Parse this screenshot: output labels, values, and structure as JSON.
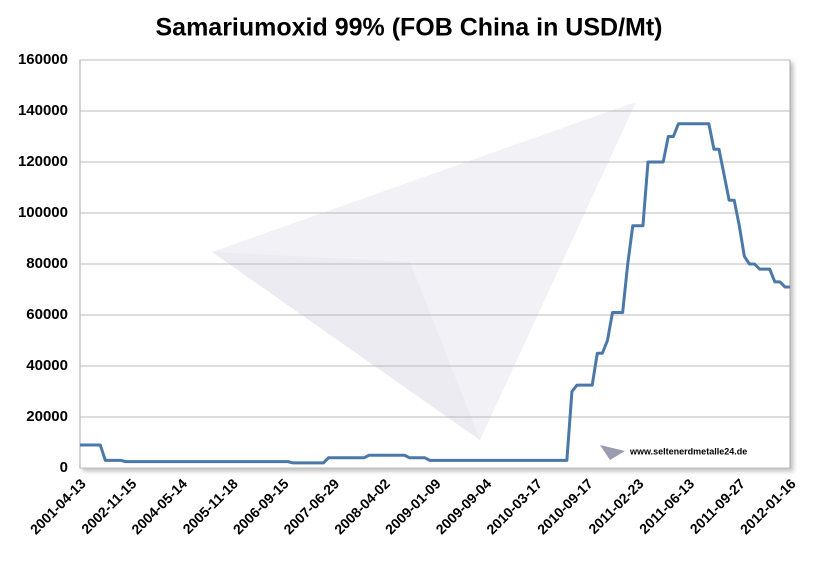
{
  "chart_data": {
    "type": "line",
    "title": "Samariumoxid 99% (FOB China in USD/Mt)",
    "annotation": "www.seltenerdmetalle24.de",
    "categories": [
      "2001-04-13",
      null,
      null,
      null,
      null,
      null,
      null,
      null,
      null,
      null,
      "2002-11-15",
      null,
      null,
      null,
      null,
      null,
      null,
      null,
      null,
      null,
      "2004-05-14",
      null,
      null,
      null,
      null,
      null,
      null,
      null,
      null,
      null,
      "2005-11-18",
      null,
      null,
      null,
      null,
      null,
      null,
      null,
      null,
      null,
      "2006-09-15",
      null,
      null,
      null,
      null,
      null,
      null,
      null,
      null,
      null,
      "2007-06-29",
      null,
      null,
      null,
      null,
      null,
      null,
      null,
      null,
      null,
      "2008-04-02",
      null,
      null,
      null,
      null,
      null,
      null,
      null,
      null,
      null,
      "2009-01-09",
      null,
      null,
      null,
      null,
      null,
      null,
      null,
      null,
      null,
      "2009-09-04",
      null,
      null,
      null,
      null,
      null,
      null,
      null,
      null,
      null,
      "2010-03-17",
      null,
      null,
      null,
      null,
      null,
      null,
      null,
      null,
      null,
      "2010-09-17",
      null,
      null,
      null,
      null,
      null,
      null,
      null,
      null,
      null,
      "2011-02-23",
      null,
      null,
      null,
      null,
      null,
      null,
      null,
      null,
      null,
      "2011-06-13",
      null,
      null,
      null,
      null,
      null,
      null,
      null,
      null,
      null,
      "2011-09-27",
      null,
      null,
      null,
      null,
      null,
      null,
      null,
      null,
      null,
      "2012-01-16"
    ],
    "values": [
      9000,
      9000,
      9000,
      9000,
      9000,
      3000,
      3000,
      3000,
      3000,
      2500,
      2500,
      2500,
      2500,
      2500,
      2500,
      2500,
      2500,
      2500,
      2500,
      2500,
      2500,
      2500,
      2500,
      2500,
      2500,
      2500,
      2500,
      2500,
      2500,
      2500,
      2500,
      2500,
      2500,
      2500,
      2500,
      2500,
      2500,
      2500,
      2500,
      2500,
      2500,
      2500,
      2000,
      2000,
      2000,
      2000,
      2000,
      2000,
      2000,
      4000,
      4000,
      4000,
      4000,
      4000,
      4000,
      4000,
      4000,
      5000,
      5000,
      5000,
      5000,
      5000,
      5000,
      5000,
      5000,
      4000,
      4000,
      4000,
      4000,
      3000,
      3000,
      3000,
      3000,
      3000,
      3000,
      3000,
      3000,
      3000,
      3000,
      3000,
      3000,
      3000,
      3000,
      3000,
      3000,
      3000,
      3000,
      3000,
      3000,
      3000,
      3000,
      3000,
      3000,
      3000,
      3000,
      3000,
      3000,
      30000,
      32500,
      32500,
      32500,
      32500,
      45000,
      45000,
      50000,
      61000,
      61000,
      61000,
      80000,
      95000,
      95000,
      95000,
      120000,
      120000,
      120000,
      120000,
      130000,
      130000,
      135000,
      135000,
      135000,
      135000,
      135000,
      135000,
      135000,
      125000,
      125000,
      115000,
      105000,
      105000,
      95000,
      83000,
      80000,
      80000,
      78000,
      78000,
      78000,
      73000,
      73000,
      71000,
      71000
    ],
    "color": "#4a78a8",
    "ylim": [
      0,
      160000
    ],
    "yticks": [
      0,
      20000,
      40000,
      60000,
      80000,
      100000,
      120000,
      140000,
      160000
    ],
    "grid": true
  }
}
